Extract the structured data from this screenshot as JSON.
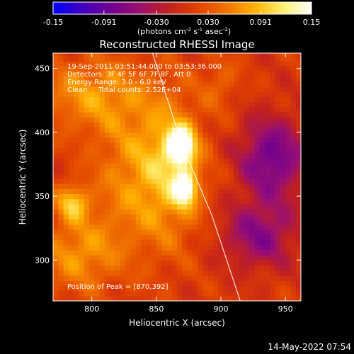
{
  "colorbar": {
    "tick_labels": [
      "-0.15",
      "-0.091",
      "-0.030",
      "0.030",
      "0.091",
      "0.15"
    ],
    "tick_values": [
      -0.15,
      -0.091,
      -0.03,
      0.03,
      0.091,
      0.15
    ],
    "range": [
      -0.15,
      0.15
    ],
    "units_main": "(photons cm",
    "units_exp1": "-2",
    "units_mid": " s",
    "units_exp2": "-1",
    "units_tail": " asec",
    "units_exp3": "-2",
    "units_close": ")",
    "colors": [
      "#0000ff",
      "#4000c0",
      "#700090",
      "#9a1070",
      "#c02020",
      "#e04000",
      "#f07000",
      "#ffb000",
      "#fff070",
      "#ffffff"
    ]
  },
  "info_lines": [
    "19-Sep-2011 03:51:44.000 to 03:53:36.000",
    "Detectors: 3F 4F 5F 6F 7F 8F, Att 0",
    "Energy Range: 3.0 - 6.0 keV",
    "Clean     Total counts: 2.52E+04"
  ],
  "peak_text": "Position of Peak = [870,392]",
  "date_stamp": "14-May-2022 07:54",
  "chart_data": {
    "type": "heatmap",
    "title": "Reconstructed RHESSI Image",
    "xlabel": "Heliocentric X (arcsec)",
    "ylabel": "Heliocentric Y (arcsec)",
    "xlim": [
      770,
      962
    ],
    "ylim": [
      268,
      462
    ],
    "x_ticks": [
      800,
      850,
      900,
      950
    ],
    "y_ticks": [
      300,
      350,
      400,
      450
    ],
    "x_tick_labels": [
      "800",
      "850",
      "900",
      "950"
    ],
    "y_tick_labels": [
      "300",
      "350",
      "400",
      "450"
    ],
    "peak": [
      870,
      392
    ],
    "limb_line": [
      [
        847,
        462
      ],
      [
        870,
        390
      ],
      [
        893,
        335
      ],
      [
        915,
        268
      ]
    ],
    "sources": [
      {
        "x": 869,
        "y": 390,
        "value": 0.15,
        "sx": 7,
        "sy": 10
      },
      {
        "x": 872,
        "y": 356,
        "value": 0.12,
        "sx": 6,
        "sy": 9
      },
      {
        "x": 862,
        "y": 372,
        "value": 0.07,
        "sx": 18,
        "sy": 40
      },
      {
        "x": 785,
        "y": 345,
        "value": 0.08,
        "sx": 9,
        "sy": 10
      },
      {
        "x": 800,
        "y": 430,
        "value": 0.06,
        "sx": 30,
        "sy": 20
      },
      {
        "x": 790,
        "y": 305,
        "value": 0.06,
        "sx": 22,
        "sy": 20
      },
      {
        "x": 830,
        "y": 365,
        "value": 0.05,
        "sx": 22,
        "sy": 40
      },
      {
        "x": 900,
        "y": 440,
        "value": 0.03,
        "sx": 10,
        "sy": 15
      },
      {
        "x": 940,
        "y": 380,
        "value": -0.09,
        "sx": 18,
        "sy": 22
      },
      {
        "x": 930,
        "y": 320,
        "value": -0.07,
        "sx": 20,
        "sy": 18
      }
    ]
  }
}
